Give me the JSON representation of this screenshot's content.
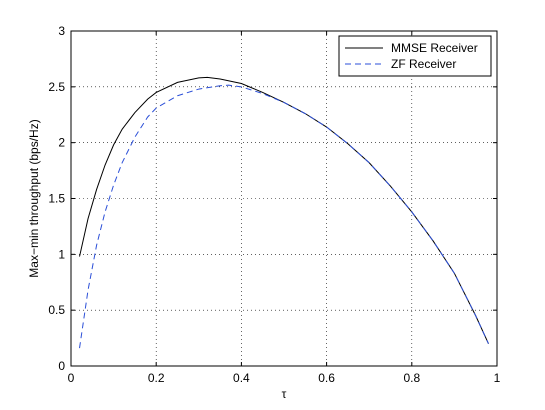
{
  "chart_data": {
    "type": "line",
    "title": "",
    "xlabel": "τ",
    "ylabel": "Max−min throughput (bps/Hz)",
    "xlim": [
      0,
      1
    ],
    "ylim": [
      0,
      3
    ],
    "xticks": [
      "0",
      "0.2",
      "0.4",
      "0.6",
      "0.8",
      "1"
    ],
    "yticks": [
      "0",
      "0.5",
      "1",
      "1.5",
      "2",
      "2.5",
      "3"
    ],
    "xtick_values": [
      0,
      0.2,
      0.4,
      0.6,
      0.8,
      1.0
    ],
    "ytick_values": [
      0,
      0.5,
      1,
      1.5,
      2,
      2.5,
      3
    ],
    "grid": true,
    "legend_position": "top-right",
    "series": [
      {
        "name": "MMSE Receiver",
        "color": "#000000",
        "style": "solid",
        "x": [
          0.02,
          0.04,
          0.06,
          0.08,
          0.1,
          0.12,
          0.15,
          0.18,
          0.2,
          0.25,
          0.3,
          0.32,
          0.35,
          0.4,
          0.45,
          0.5,
          0.55,
          0.6,
          0.65,
          0.7,
          0.75,
          0.8,
          0.85,
          0.9,
          0.95,
          0.98
        ],
        "y": [
          0.98,
          1.32,
          1.58,
          1.8,
          1.98,
          2.12,
          2.27,
          2.39,
          2.45,
          2.54,
          2.58,
          2.585,
          2.57,
          2.53,
          2.45,
          2.36,
          2.26,
          2.14,
          1.99,
          1.82,
          1.61,
          1.38,
          1.12,
          0.83,
          0.45,
          0.2
        ]
      },
      {
        "name": "ZF Receiver",
        "color": "#2b4fd8",
        "style": "dashed",
        "x": [
          0.02,
          0.04,
          0.06,
          0.08,
          0.1,
          0.12,
          0.15,
          0.18,
          0.2,
          0.25,
          0.3,
          0.35,
          0.37,
          0.4,
          0.45,
          0.5,
          0.55,
          0.6,
          0.65,
          0.7,
          0.75,
          0.8,
          0.85,
          0.9,
          0.95,
          0.98
        ],
        "y": [
          0.16,
          0.68,
          1.08,
          1.38,
          1.62,
          1.82,
          2.05,
          2.23,
          2.31,
          2.42,
          2.48,
          2.51,
          2.515,
          2.5,
          2.44,
          2.36,
          2.26,
          2.14,
          1.99,
          1.82,
          1.61,
          1.38,
          1.12,
          0.83,
          0.45,
          0.2
        ]
      }
    ]
  }
}
